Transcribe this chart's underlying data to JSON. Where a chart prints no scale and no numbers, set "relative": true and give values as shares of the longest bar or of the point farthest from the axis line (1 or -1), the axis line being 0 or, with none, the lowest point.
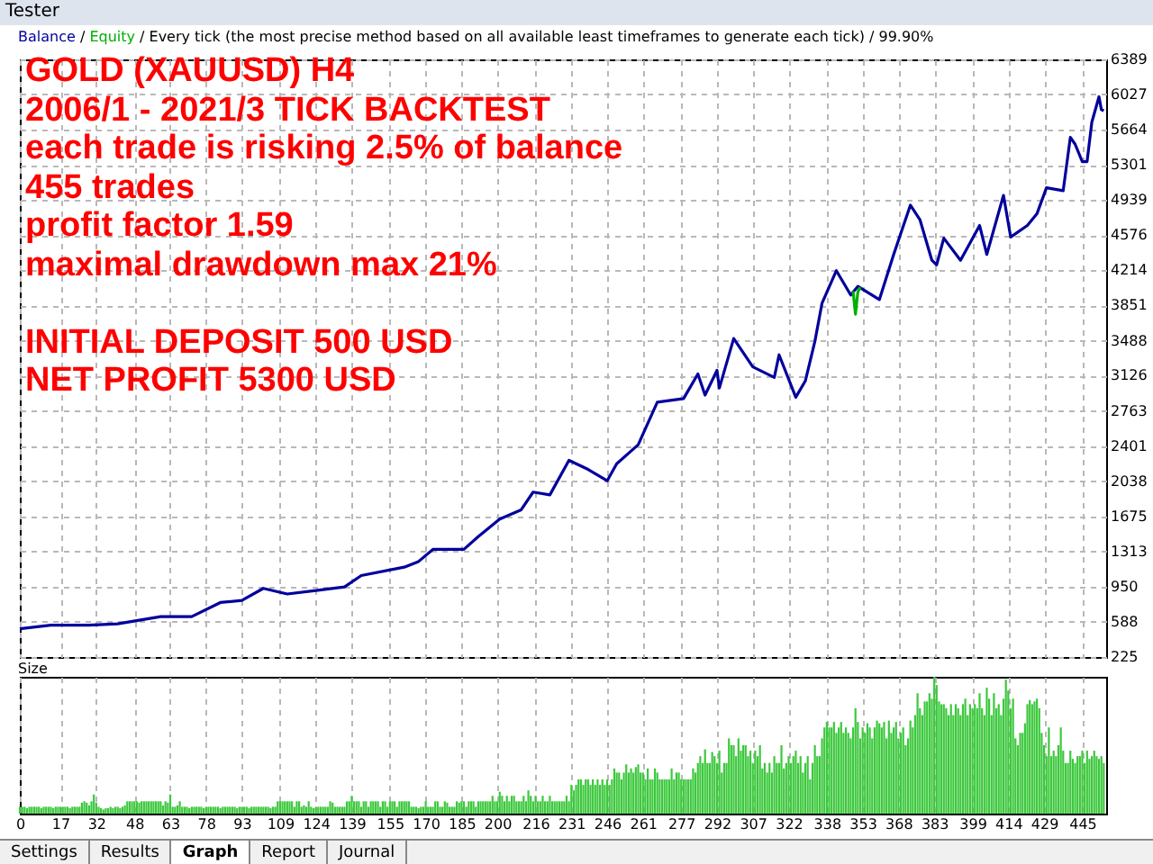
{
  "chart_data": [
    {
      "type": "line",
      "title": "GOLD (XAUUSD) H4",
      "subtitle": "Every tick (the most precise method based on all available least timeframes to generate each tick) / 99.90%",
      "annotations": [
        "2006/1 - 2021/3 TICK BACKTEST",
        "each trade is risking 2.5% of balance",
        "455 trades",
        "profit factor 1.59",
        "maximal drawdown max 21%",
        "INITIAL DEPOSIT 500 USD",
        "NET PROFIT 5300 USD"
      ],
      "series": [
        {
          "name": "Balance",
          "color": "#00009c",
          "x": [
            0,
            13,
            29,
            41,
            59,
            72,
            84,
            93,
            102,
            112,
            124,
            136,
            143,
            161,
            167,
            173,
            186,
            192,
            201,
            210,
            215,
            222,
            230,
            238,
            246,
            250,
            259,
            267,
            278,
            284,
            287,
            292,
            293,
            299,
            307,
            316,
            318,
            325,
            329,
            333,
            336,
            342,
            348,
            351,
            360,
            366,
            373,
            377,
            382,
            384,
            387,
            394,
            402,
            405,
            412,
            415,
            422,
            426,
            430,
            437,
            440,
            442,
            445,
            447,
            449,
            452,
            453,
            454
          ],
          "values": [
            517,
            553,
            553,
            568,
            641,
            641,
            787,
            809,
            933,
            875,
            911,
            948,
            1065,
            1152,
            1210,
            1335,
            1335,
            1466,
            1648,
            1743,
            1926,
            1897,
            2254,
            2160,
            2043,
            2218,
            2415,
            2853,
            2890,
            3145,
            2926,
            3182,
            2999,
            3510,
            3218,
            3109,
            3342,
            2904,
            3072,
            3480,
            3875,
            4210,
            3959,
            4048,
            3911,
            4377,
            4886,
            4736,
            4317,
            4270,
            4545,
            4317,
            4676,
            4377,
            4987,
            4557,
            4676,
            4796,
            5065,
            5035,
            5585,
            5514,
            5334,
            5334,
            5741,
            6004,
            5872,
            5860
          ]
        },
        {
          "name": "Equity",
          "color": "#00b000",
          "x": [
            349,
            350,
            351,
            352
          ],
          "values": [
            4000,
            3760,
            3990,
            4040
          ]
        }
      ],
      "xlim": [
        0,
        455
      ],
      "xticks": [
        0,
        17,
        32,
        48,
        63,
        78,
        93,
        109,
        124,
        139,
        155,
        170,
        185,
        200,
        216,
        231,
        246,
        261,
        277,
        292,
        307,
        322,
        338,
        353,
        368,
        383,
        399,
        414,
        429,
        445
      ],
      "ylim": [
        225,
        6389
      ],
      "yticks": [
        225,
        588,
        950,
        1313,
        1675,
        2038,
        2401,
        2763,
        3126,
        3488,
        3851,
        4214,
        4576,
        4939,
        5301,
        5664,
        6027,
        6389
      ],
      "tick_labels": "y",
      "grid": true,
      "legend": "top left",
      "legend_title": "/"
    },
    {
      "type": "bar",
      "ylabel": "Size",
      "relative": true,
      "color": "#3cc83c",
      "x": [
        0,
        1,
        2,
        3,
        4,
        5,
        6,
        7,
        8,
        9,
        10,
        11,
        12,
        13,
        14,
        15,
        16,
        17,
        18,
        19,
        20,
        21,
        22,
        23,
        24,
        25,
        26,
        27,
        28,
        29,
        30,
        31,
        32,
        33,
        34,
        35,
        36,
        37,
        38,
        39,
        40,
        41,
        42,
        43,
        44,
        45,
        46,
        47,
        48,
        49,
        50,
        51,
        52,
        53,
        54,
        55,
        56,
        57,
        58,
        59,
        60,
        61,
        62,
        63,
        64,
        65,
        66,
        67,
        68,
        69,
        70,
        71,
        72,
        73,
        74,
        75,
        76,
        77,
        78,
        79,
        80,
        81,
        82,
        83,
        84,
        85,
        86,
        87,
        88,
        89,
        90,
        91,
        92,
        93,
        94,
        95,
        96,
        97,
        98,
        99,
        100,
        101,
        102,
        103,
        104,
        105,
        106,
        107,
        108,
        109,
        110,
        111,
        112,
        113,
        114,
        115,
        116,
        117,
        118,
        119,
        120,
        121,
        122,
        123,
        124,
        125,
        126,
        127,
        128,
        129,
        130,
        131,
        132,
        133,
        134,
        135,
        136,
        137,
        138,
        139,
        140,
        141,
        142,
        143,
        144,
        145,
        146,
        147,
        148,
        149,
        150,
        151,
        152,
        153,
        154,
        155,
        156,
        157,
        158,
        159,
        160,
        161,
        162,
        163,
        164,
        165,
        166,
        167,
        168,
        169,
        170,
        171,
        172,
        173,
        174,
        175,
        176,
        177,
        178,
        179,
        180,
        181,
        182,
        183,
        184,
        185,
        186,
        187,
        188,
        189,
        190,
        191,
        192,
        193,
        194,
        195,
        196,
        197,
        198,
        199,
        200,
        201,
        202,
        203,
        204,
        205,
        206,
        207,
        208,
        209,
        210,
        211,
        212,
        213,
        214,
        215,
        216,
        217,
        218,
        219,
        220,
        221,
        222,
        223,
        224,
        225,
        226,
        227,
        228,
        229,
        230,
        231,
        232,
        233,
        234,
        235,
        236,
        237,
        238,
        239,
        240,
        241,
        242,
        243,
        244,
        245,
        246,
        247,
        248,
        249,
        250,
        251,
        252,
        253,
        254,
        255,
        256,
        257,
        258,
        259,
        260,
        261,
        262,
        263,
        264,
        265,
        266,
        267,
        268,
        269,
        270,
        271,
        272,
        273,
        274,
        275,
        276,
        277,
        278,
        279,
        280,
        281,
        282,
        283,
        284,
        285,
        286,
        287,
        288,
        289,
        290,
        291,
        292,
        293,
        294,
        295,
        296,
        297,
        298,
        299,
        300,
        301,
        302,
        303,
        304,
        305,
        306,
        307,
        308,
        309,
        310,
        311,
        312,
        313,
        314,
        315,
        316,
        317,
        318,
        319,
        320,
        321,
        322,
        323,
        324,
        325,
        326,
        327,
        328,
        329,
        330,
        331,
        332,
        333,
        334,
        335,
        336,
        337,
        338,
        339,
        340,
        341,
        342,
        343,
        344,
        345,
        346,
        347,
        348,
        349,
        350,
        351,
        352,
        353,
        354,
        355,
        356,
        357,
        358,
        359,
        360,
        361,
        362,
        363,
        364,
        365,
        366,
        367,
        368,
        369,
        370,
        371,
        372,
        373,
        374,
        375,
        376,
        377,
        378,
        379,
        380,
        381,
        382,
        383,
        384,
        385,
        386,
        387,
        388,
        389,
        390,
        391,
        392,
        393,
        394,
        395,
        396,
        397,
        398,
        399,
        400,
        401,
        402,
        403,
        404,
        405,
        406,
        407,
        408,
        409,
        410,
        411,
        412,
        413,
        414,
        415,
        416,
        417,
        418,
        419,
        420,
        421,
        422,
        423,
        424,
        425,
        426,
        427,
        428,
        429,
        430,
        431,
        432,
        433,
        434,
        435,
        436,
        437,
        438,
        439,
        440,
        441,
        442,
        443,
        444,
        445,
        446,
        447,
        448,
        449,
        450,
        451,
        452,
        453,
        454
      ],
      "annotations": [
        "Tester",
        "Settings",
        "Results",
        "Graph",
        "Report",
        "Journal"
      ],
      "values": [
        0.05,
        0.05,
        0.05,
        0.04,
        0.05,
        0.05,
        0.05,
        0.05,
        0.05,
        0.04,
        0.05,
        0.05,
        0.05,
        0.05,
        0.04,
        0.05,
        0.05,
        0.05,
        0.05,
        0.05,
        0.05,
        0.04,
        0.05,
        0.05,
        0.05,
        0.05,
        0.08,
        0.09,
        0.08,
        0.06,
        0.09,
        0.14,
        0.08,
        0.05,
        0.04,
        0.03,
        0.04,
        0.04,
        0.05,
        0.04,
        0.05,
        0.05,
        0.04,
        0.05,
        0.06,
        0.09,
        0.09,
        0.09,
        0.09,
        0.09,
        0.08,
        0.09,
        0.09,
        0.09,
        0.09,
        0.09,
        0.09,
        0.09,
        0.09,
        0.09,
        0.06,
        0.09,
        0.08,
        0.14,
        0.05,
        0.05,
        0.06,
        0.09,
        0.05,
        0.05,
        0.05,
        0.04,
        0.05,
        0.05,
        0.05,
        0.05,
        0.05,
        0.04,
        0.05,
        0.05,
        0.05,
        0.05,
        0.05,
        0.05,
        0.04,
        0.05,
        0.05,
        0.05,
        0.05,
        0.05,
        0.05,
        0.04,
        0.05,
        0.05,
        0.05,
        0.05,
        0.04,
        0.05,
        0.05,
        0.05,
        0.05,
        0.05,
        0.05,
        0.05,
        0.05,
        0.04,
        0.05,
        0.05,
        0.09,
        0.09,
        0.09,
        0.09,
        0.09,
        0.09,
        0.09,
        0.05,
        0.09,
        0.09,
        0.05,
        0.06,
        0.05,
        0.09,
        0.05,
        0.04,
        0.05,
        0.05,
        0.05,
        0.05,
        0.05,
        0.05,
        0.09,
        0.08,
        0.05,
        0.05,
        0.05,
        0.05,
        0.05,
        0.09,
        0.09,
        0.13,
        0.09,
        0.09,
        0.09,
        0.05,
        0.09,
        0.09,
        0.05,
        0.09,
        0.09,
        0.09,
        0.09,
        0.05,
        0.09,
        0.09,
        0.05,
        0.09,
        0.09,
        0.09,
        0.05,
        0.09,
        0.09,
        0.09,
        0.09,
        0.09,
        0.05,
        0.05,
        0.05,
        0.04,
        0.05,
        0.05,
        0.09,
        0.05,
        0.05,
        0.05,
        0.09,
        0.09,
        0.05,
        0.05,
        0.09,
        0.08,
        0.05,
        0.05,
        0.05,
        0.09,
        0.08,
        0.09,
        0.09,
        0.05,
        0.09,
        0.09,
        0.09,
        0.05,
        0.09,
        0.09,
        0.09,
        0.09,
        0.09,
        0.09,
        0.13,
        0.09,
        0.09,
        0.16,
        0.13,
        0.09,
        0.13,
        0.09,
        0.13,
        0.13,
        0.09,
        0.09,
        0.09,
        0.13,
        0.09,
        0.17,
        0.13,
        0.09,
        0.13,
        0.09,
        0.09,
        0.13,
        0.09,
        0.09,
        0.13,
        0.09,
        0.09,
        0.09,
        0.09,
        0.09,
        0.09,
        0.13,
        0.09,
        0.21,
        0.17,
        0.21,
        0.25,
        0.25,
        0.21,
        0.25,
        0.25,
        0.21,
        0.25,
        0.21,
        0.25,
        0.21,
        0.25,
        0.21,
        0.25,
        0.21,
        0.25,
        0.33,
        0.3,
        0.3,
        0.25,
        0.3,
        0.36,
        0.3,
        0.33,
        0.3,
        0.34,
        0.36,
        0.3,
        0.3,
        0.25,
        0.33,
        0.25,
        0.25,
        0.33,
        0.3,
        0.25,
        0.25,
        0.25,
        0.25,
        0.25,
        0.33,
        0.25,
        0.3,
        0.3,
        0.25,
        0.25,
        0.25,
        0.25,
        0.25,
        0.33,
        0.3,
        0.37,
        0.42,
        0.37,
        0.47,
        0.37,
        0.37,
        0.45,
        0.42,
        0.37,
        0.46,
        0.3,
        0.37,
        0.37,
        0.55,
        0.5,
        0.5,
        0.42,
        0.55,
        0.46,
        0.5,
        0.5,
        0.42,
        0.46,
        0.37,
        0.46,
        0.42,
        0.5,
        0.33,
        0.37,
        0.3,
        0.37,
        0.3,
        0.42,
        0.37,
        0.37,
        0.5,
        0.33,
        0.37,
        0.42,
        0.37,
        0.42,
        0.46,
        0.37,
        0.42,
        0.3,
        0.37,
        0.42,
        0.25,
        0.37,
        0.5,
        0.42,
        0.42,
        0.55,
        0.63,
        0.67,
        0.63,
        0.63,
        0.67,
        0.59,
        0.63,
        0.67,
        0.59,
        0.63,
        0.59,
        0.55,
        0.63,
        0.77,
        0.67,
        0.55,
        0.63,
        0.59,
        0.66,
        0.63,
        0.55,
        0.63,
        0.68,
        0.66,
        0.63,
        0.67,
        0.55,
        0.68,
        0.59,
        0.63,
        0.67,
        0.55,
        0.59,
        0.63,
        0.5,
        0.55,
        0.68,
        0.63,
        0.72,
        0.88,
        0.77,
        0.72,
        0.82,
        0.82,
        0.88,
        0.84,
        1,
        0.94,
        0.82,
        0.8,
        0.8,
        0.77,
        0.72,
        0.8,
        0.72,
        0.8,
        0.77,
        0.72,
        0.8,
        0.84,
        0.72,
        0.8,
        0.77,
        0.8,
        0.77,
        0.88,
        0.77,
        0.72,
        0.92,
        0.84,
        0.72,
        0.88,
        0.77,
        0.8,
        0.72,
        0.84,
        0.98,
        0.9,
        0.77,
        0.84,
        0.55,
        0.5,
        0.59,
        0.59,
        0.66,
        0.8,
        0.83,
        0.8,
        0.82,
        0.84,
        0.77,
        0.59,
        0.5,
        0.42,
        0.63,
        0.42,
        0.46,
        0.42,
        0.5,
        0.63,
        0.46,
        0.37,
        0.37,
        0.46,
        0.4,
        0.37,
        0.42,
        0.42,
        0.46,
        0.37,
        0.46,
        0.4,
        0.42,
        0.46,
        0.42,
        0.4,
        0.42,
        0.37
      ],
      "xlim": [
        0,
        455
      ],
      "xticks": [
        0,
        17,
        32,
        48,
        63,
        78,
        93,
        109,
        124,
        139,
        155,
        170,
        185,
        200,
        216,
        231,
        246,
        261,
        277,
        292,
        307,
        322,
        338,
        353,
        368,
        383,
        399,
        414,
        429,
        445
      ],
      "tick_labels": "x",
      "grid": "x"
    }
  ]
}
